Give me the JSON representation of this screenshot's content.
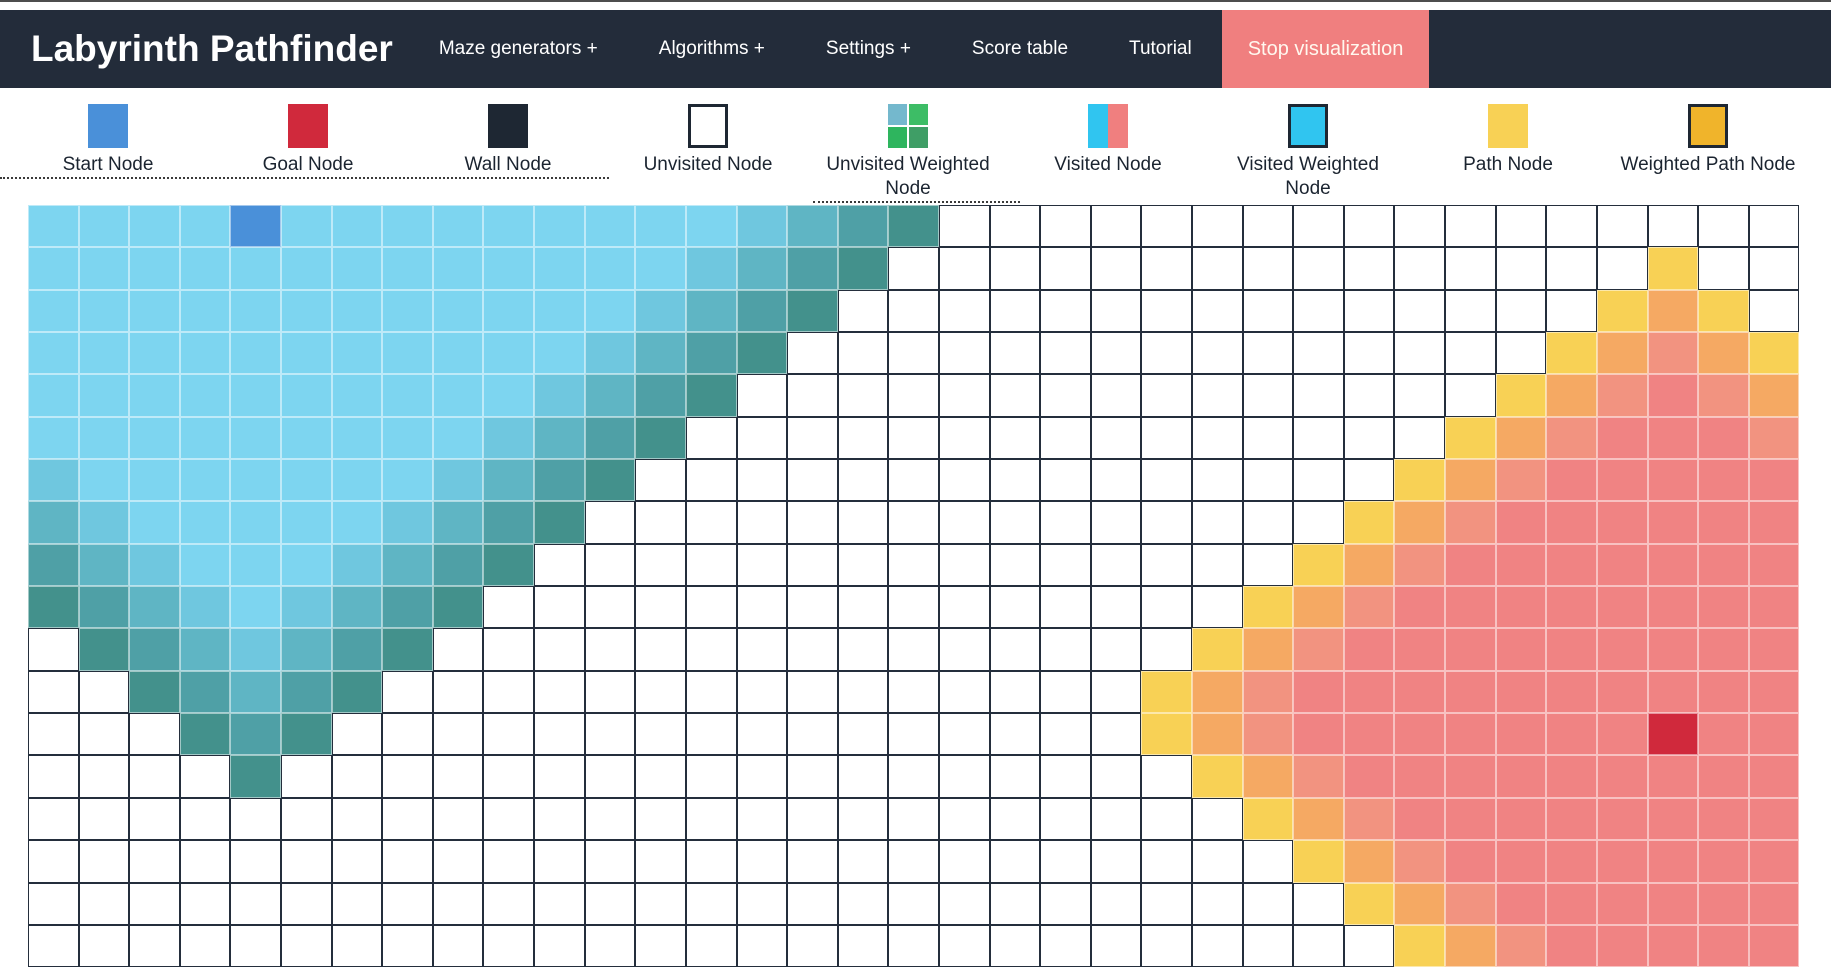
{
  "navbar": {
    "title": "Labyrinth Pathfinder",
    "items": [
      {
        "label": "Maze generators +"
      },
      {
        "label": "Algorithms +"
      },
      {
        "label": "Settings +"
      },
      {
        "label": "Score table"
      },
      {
        "label": "Tutorial"
      }
    ],
    "stop_button": "Stop visualization",
    "colors": {
      "bg": "#232C3A",
      "stop_bg": "#F07F7F",
      "text": "#FFFFFF"
    }
  },
  "legend": {
    "items": [
      {
        "label": "Start Node",
        "swatch": {
          "type": "solid",
          "color": "#4A90D9",
          "border": false,
          "dots": false
        }
      },
      {
        "label": "Goal Node",
        "swatch": {
          "type": "solid",
          "color": "#D0293C",
          "border": false,
          "dots": false
        }
      },
      {
        "label": "Wall Node",
        "swatch": {
          "type": "solid",
          "color": "#1E2733",
          "border": false,
          "dots": false
        }
      },
      {
        "label": "Unvisited Node",
        "swatch": {
          "type": "solid",
          "color": "#FFFFFF",
          "border": true,
          "dots": false
        }
      },
      {
        "label": "Unvisited Weighted Node",
        "swatch": {
          "type": "quad",
          "colors": [
            "#74B8CD",
            "#3DBD66",
            "#2EB55E",
            "#3F9E66"
          ],
          "border": false,
          "dots": true
        }
      },
      {
        "label": "Visited Node",
        "swatch": {
          "type": "split",
          "colors": [
            "#30C5F0",
            "#F07F7F"
          ],
          "border": false,
          "dots": true
        }
      },
      {
        "label": "Visited Weighted Node",
        "swatch": {
          "type": "solid",
          "color": "#30C5F0",
          "border": true,
          "dots": false
        }
      },
      {
        "label": "Path Node",
        "swatch": {
          "type": "solid",
          "color": "#F8D155",
          "border": false,
          "dots": true
        }
      },
      {
        "label": "Weighted Path Node",
        "swatch": {
          "type": "solid",
          "color": "#F0B42B",
          "border": true,
          "dots": false
        }
      }
    ]
  },
  "grid": {
    "cols": 35,
    "rows": 18,
    "start": {
      "row": 0,
      "col": 4
    },
    "goal": {
      "row": 12,
      "col": 32
    },
    "cell_states": {
      ".": {
        "name": "unvisited",
        "color": "#FFFFFF",
        "dots": false
      },
      "a": {
        "name": "visited-old",
        "color": "#7DD5F0",
        "dots": false
      },
      "b": {
        "name": "visited-age3",
        "color": "#6FC7DF",
        "dots": true
      },
      "c": {
        "name": "visited-age2",
        "color": "#5FB5C4",
        "dots": true
      },
      "d": {
        "name": "visited-age1",
        "color": "#4FA0A6",
        "dots": true
      },
      "e": {
        "name": "visited-frontier",
        "color": "#43918C",
        "dots": false
      },
      "y": {
        "name": "goalwave-frontier",
        "color": "#F8D155",
        "dots": true
      },
      "o": {
        "name": "goalwave-age1",
        "color": "#F5A963",
        "dots": true
      },
      "q": {
        "name": "goalwave-age2",
        "color": "#F29380",
        "dots": true
      },
      "r": {
        "name": "goalwave-old",
        "color": "#F08383",
        "dots": false
      },
      "S": {
        "name": "start-node",
        "color": "#4A90D9",
        "dots": false
      },
      "G": {
        "name": "goal-node",
        "color": "#D0293C",
        "dots": false
      }
    },
    "rows_encoded": [
      "aaaaSaaaaaaaaabcde.................",
      "aaaaaaaaaaaaabcde...............y..",
      "aaaaaaaaaaaabcde...............yoy.",
      "aaaaaaaaaaabcde...............yoqoy",
      "aaaaaaaaaabcde...............yoqrqo",
      "aaaaaaaaabcde...............yoqrrrq",
      "baaaaaaabcde...............yoqrrrrr",
      "cbaaaaabcde...............yoqrrrrrr",
      "dcbaaabcde...............yoqrrrrrrr",
      "edcbabcde...............yoqrrrrrrrr",
      ".edcbcde...............yoqrrrrrrrrr",
      "..edcde...............yoqrrrrrrrrrr",
      "...ede................yoqrrrrrrrGrr",
      "....e..................yoqrrrrrrrrr",
      "........................yoqrrrrrrrr",
      ".........................yoqrrrrrrr",
      "..........................yoqrrrrrr",
      "...........................yoqrrrrr"
    ]
  }
}
